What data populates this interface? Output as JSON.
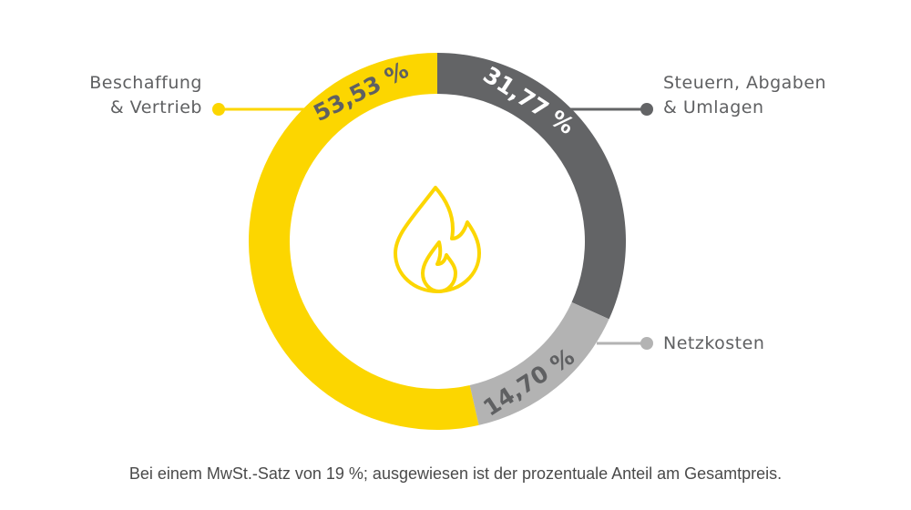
{
  "chart_data": {
    "type": "pie",
    "style": "donut",
    "slices": [
      {
        "label_line1": "Beschaffung",
        "label_line2": "& Vertrieb",
        "value": 53.53,
        "value_text": "53,53 %",
        "color": "#fcd600",
        "text_color": "#5f6062"
      },
      {
        "label_line1": "Steuern,  Abgaben",
        "label_line2": "& Umlagen",
        "value": 31.77,
        "value_text": "31,77 %",
        "color": "#636466",
        "text_color": "#ffffff"
      },
      {
        "label_line1": "Netzkosten",
        "label_line2": "",
        "value": 14.7,
        "value_text": "14,70 %",
        "color": "#b3b3b3",
        "text_color": "#5f6062"
      }
    ],
    "center_icon": "flame-icon",
    "legend": "callouts",
    "footnote": "Bei einem MwSt.-Satz von 19 %; ausgewiesen ist der prozentuale Anteil am Gesamtpreis."
  }
}
